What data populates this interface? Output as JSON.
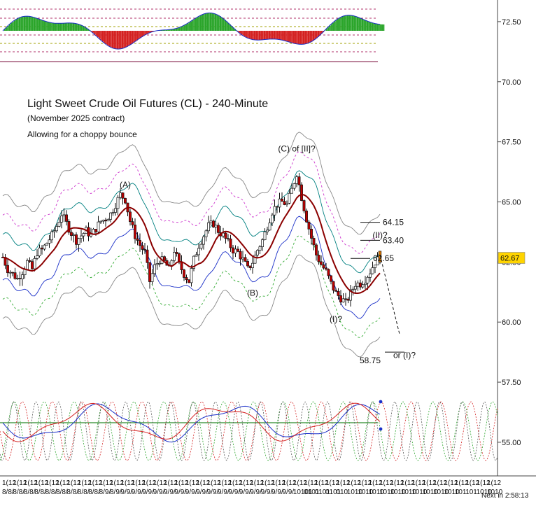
{
  "chart_data": {
    "type": "candlestick",
    "title": "Light Sweet Crude Oil Futures (CL) - 240-Minute",
    "subtitle": "(November 2025 contract)",
    "note": "Allowing for a choppy bounce",
    "ylim": [
      53.6,
      73.4
    ],
    "yticks": [
      72.5,
      70.0,
      67.5,
      65.0,
      62.5,
      60.0,
      57.5,
      55.0
    ],
    "ytick_labels": [
      "72.50",
      "70.00",
      "67.50",
      "65.00",
      "62.50",
      "60.00",
      "57.50",
      "55.00"
    ],
    "last_price": 62.67,
    "last_price_label": "62.67",
    "xtick_labels": [
      "1(12",
      "1(12",
      "1(12",
      "1(12",
      "1(12",
      "1(12",
      "1(12",
      "1(12",
      "1(12",
      "1(12",
      "1(12",
      "1(12",
      "1(12",
      "1(12",
      "1(12",
      "1(12",
      "1(12",
      "1(12",
      "1(12",
      "1(12",
      "1(12",
      "1(12",
      "1(12",
      "1(12",
      "1(12",
      "1(12",
      "1(12",
      "1(12",
      "1(12",
      "1(12",
      "1(12",
      "1(12",
      "1(12",
      "1(12",
      "1(12",
      "1(12",
      "1(12",
      "1(12",
      "1(12",
      "1(12",
      "1(12",
      "1(12",
      "1(12",
      "1(12",
      "1(12",
      "1(12"
    ],
    "xtick_labels2": [
      "8/8/",
      "8/8/",
      "8/8/",
      "8/8/",
      "8/8/",
      "8/8/",
      "8/8/",
      "8/8/",
      "8/8/",
      "8/9/",
      "8/9/",
      "9/9/",
      "9/9/",
      "9/9/",
      "9/9/",
      "9/9/",
      "9/9/",
      "9/9/",
      "9/9/",
      "9/9/",
      "9/9/",
      "9/9/",
      "9/9/",
      "9/9/",
      "9/9/",
      "9/9/",
      "9/9/",
      "10101",
      "0101",
      "0101",
      "0101",
      "010",
      "1010",
      "1010",
      "1010",
      "1010",
      "1010",
      "1010",
      "1010",
      "1010",
      "1010",
      "1010",
      "101",
      "101",
      "1010",
      "1010"
    ],
    "countdown": "Next in 2:58:13",
    "close_path": [
      [
        0,
        62.7
      ],
      [
        1,
        62.2
      ],
      [
        2,
        62.0
      ],
      [
        3,
        61.8
      ],
      [
        4,
        62.1
      ],
      [
        5,
        62.5
      ],
      [
        6,
        62.2
      ],
      [
        7,
        62.9
      ],
      [
        8,
        63.0
      ],
      [
        9,
        63.3
      ],
      [
        10,
        63.6
      ],
      [
        11,
        64.0
      ],
      [
        12,
        64.5
      ],
      [
        13,
        64.1
      ],
      [
        14,
        63.7
      ],
      [
        15,
        63.4
      ],
      [
        16,
        63.6
      ],
      [
        17,
        63.8
      ],
      [
        18,
        63.6
      ],
      [
        19,
        63.9
      ],
      [
        20,
        64.2
      ],
      [
        21,
        64.3
      ],
      [
        22,
        64.5
      ],
      [
        23,
        64.9
      ],
      [
        24,
        65.3
      ],
      [
        25,
        65.1
      ],
      [
        26,
        64.2
      ],
      [
        27,
        63.6
      ],
      [
        28,
        63.2
      ],
      [
        29,
        62.9
      ],
      [
        30,
        61.7
      ],
      [
        31,
        62.3
      ],
      [
        32,
        62.6
      ],
      [
        33,
        62.5
      ],
      [
        34,
        62.2
      ],
      [
        35,
        63.0
      ],
      [
        36,
        62.4
      ],
      [
        37,
        62.0
      ],
      [
        38,
        61.7
      ],
      [
        39,
        62.6
      ],
      [
        40,
        63.2
      ],
      [
        41,
        63.6
      ],
      [
        42,
        64.0
      ],
      [
        43,
        64.1
      ],
      [
        44,
        63.8
      ],
      [
        45,
        63.6
      ],
      [
        46,
        63.3
      ],
      [
        47,
        63.0
      ],
      [
        48,
        62.9
      ],
      [
        49,
        62.6
      ],
      [
        50,
        62.2
      ],
      [
        51,
        62.5
      ],
      [
        52,
        63.0
      ],
      [
        53,
        63.4
      ],
      [
        54,
        64.0
      ],
      [
        55,
        64.6
      ],
      [
        56,
        64.9
      ],
      [
        57,
        65.0
      ],
      [
        58,
        64.9
      ],
      [
        59,
        65.5
      ],
      [
        60,
        66.2
      ],
      [
        61,
        65.2
      ],
      [
        62,
        64.3
      ],
      [
        63,
        63.5
      ],
      [
        64,
        62.8
      ],
      [
        65,
        62.4
      ],
      [
        66,
        62.1
      ],
      [
        67,
        61.6
      ],
      [
        68,
        61.2
      ],
      [
        69,
        61.0
      ],
      [
        70,
        60.8
      ],
      [
        71,
        61.2
      ],
      [
        72,
        61.6
      ],
      [
        73,
        61.6
      ],
      [
        74,
        61.8
      ],
      [
        75,
        62.1
      ],
      [
        76,
        62.5
      ],
      [
        77,
        62.67
      ]
    ],
    "wave_labels": [
      {
        "text": "(A)",
        "x": 25,
        "y": 65.6
      },
      {
        "text": "(B)",
        "x": 51,
        "y": 61.1
      },
      {
        "text": "(C) of [II]?",
        "x": 60,
        "y": 67.1
      },
      {
        "text": "(I)?",
        "x": 68,
        "y": 60.0
      },
      {
        "text": "(II)?",
        "x": 77,
        "y": 63.5
      },
      {
        "text": "or (I)?",
        "x": 82,
        "y": 58.5
      }
    ],
    "target_levels": [
      {
        "label": "64.15",
        "value": 64.15,
        "x_from": 73,
        "x_to": 77
      },
      {
        "label": "63.40",
        "value": 63.4,
        "x_from": 73,
        "x_to": 77
      },
      {
        "label": "62.65",
        "value": 62.65,
        "x_from": 71,
        "x_to": 75
      },
      {
        "label": "58.75",
        "value": 58.75,
        "x_from": 78,
        "x_to": 82
      }
    ],
    "projection": [
      [
        77,
        62.8
      ],
      [
        81,
        59.5
      ]
    ],
    "bands": {
      "ma_red": "moving average (dark red)",
      "teal": "upper band (teal)",
      "blue": "lower band (blue)",
      "magenta_dashed": "outer upper band (magenta dashed)",
      "green_dashed": "outer lower band (green dashed)",
      "gray": "envelope (gray)"
    },
    "colors": {
      "up_candle": "#ffffff",
      "down_candle": "#c00000",
      "ma": "#8b0000",
      "teal": "#008080",
      "blue": "#1a2fc8",
      "magenta": "#cc33cc",
      "green": "#33aa33",
      "gray": "#888888",
      "osc_green": "#2aa52a",
      "osc_red": "#d42020",
      "last_price_box": "#ffd400"
    }
  }
}
